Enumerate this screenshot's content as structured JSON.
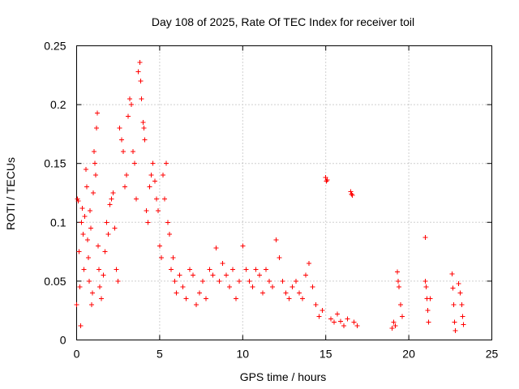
{
  "chart_data": {
    "type": "scatter",
    "title": "Day 108 of 2025, Rate Of TEC Index for receiver toil",
    "xlabel": "GPS time / hours",
    "ylabel": "ROTI / TECUs",
    "xlim": [
      0,
      25
    ],
    "ylim": [
      0,
      0.25
    ],
    "grid": true,
    "marker": "plus",
    "color": "#ff0000",
    "x_ticks": [
      {
        "value": 0,
        "label": "0"
      },
      {
        "value": 5,
        "label": "5"
      },
      {
        "value": 10,
        "label": "10"
      },
      {
        "value": 15,
        "label": "15"
      },
      {
        "value": 20,
        "label": "20"
      },
      {
        "value": 25,
        "label": "25"
      }
    ],
    "y_ticks": [
      {
        "value": 0,
        "label": "0"
      },
      {
        "value": 0.05,
        "label": "0.05"
      },
      {
        "value": 0.1,
        "label": "0.1"
      },
      {
        "value": 0.15,
        "label": "0.15"
      },
      {
        "value": 0.2,
        "label": "0.2"
      },
      {
        "value": 0.25,
        "label": "0.25"
      }
    ],
    "series": [
      {
        "name": "ROTI",
        "points": [
          [
            0.0,
            0.03
          ],
          [
            0.05,
            0.12
          ],
          [
            0.1,
            0.118
          ],
          [
            0.15,
            0.075
          ],
          [
            0.2,
            0.045
          ],
          [
            0.25,
            0.012
          ],
          [
            0.3,
            0.1
          ],
          [
            0.35,
            0.112
          ],
          [
            0.4,
            0.09
          ],
          [
            0.45,
            0.06
          ],
          [
            0.5,
            0.105
          ],
          [
            0.55,
            0.145
          ],
          [
            0.6,
            0.13
          ],
          [
            0.65,
            0.085
          ],
          [
            0.7,
            0.07
          ],
          [
            0.75,
            0.05
          ],
          [
            0.8,
            0.11
          ],
          [
            0.85,
            0.095
          ],
          [
            0.9,
            0.03
          ],
          [
            0.95,
            0.04
          ],
          [
            1.0,
            0.125
          ],
          [
            1.05,
            0.16
          ],
          [
            1.1,
            0.15
          ],
          [
            1.15,
            0.14
          ],
          [
            1.2,
            0.18
          ],
          [
            1.25,
            0.193
          ],
          [
            1.3,
            0.08
          ],
          [
            1.35,
            0.06
          ],
          [
            1.4,
            0.045
          ],
          [
            1.5,
            0.035
          ],
          [
            1.6,
            0.055
          ],
          [
            1.7,
            0.075
          ],
          [
            1.8,
            0.1
          ],
          [
            1.9,
            0.09
          ],
          [
            2.0,
            0.115
          ],
          [
            2.1,
            0.12
          ],
          [
            2.2,
            0.125
          ],
          [
            2.3,
            0.095
          ],
          [
            2.4,
            0.06
          ],
          [
            2.5,
            0.05
          ],
          [
            2.6,
            0.18
          ],
          [
            2.7,
            0.17
          ],
          [
            2.8,
            0.16
          ],
          [
            2.9,
            0.13
          ],
          [
            3.0,
            0.14
          ],
          [
            3.1,
            0.19
          ],
          [
            3.2,
            0.205
          ],
          [
            3.3,
            0.2
          ],
          [
            3.4,
            0.16
          ],
          [
            3.5,
            0.15
          ],
          [
            3.6,
            0.12
          ],
          [
            3.7,
            0.228
          ],
          [
            3.8,
            0.236
          ],
          [
            3.85,
            0.22
          ],
          [
            3.9,
            0.205
          ],
          [
            4.0,
            0.185
          ],
          [
            4.05,
            0.18
          ],
          [
            4.1,
            0.17
          ],
          [
            4.2,
            0.11
          ],
          [
            4.3,
            0.1
          ],
          [
            4.4,
            0.13
          ],
          [
            4.5,
            0.14
          ],
          [
            4.6,
            0.15
          ],
          [
            4.7,
            0.135
          ],
          [
            4.8,
            0.12
          ],
          [
            4.9,
            0.11
          ],
          [
            5.0,
            0.08
          ],
          [
            5.1,
            0.07
          ],
          [
            5.2,
            0.14
          ],
          [
            5.3,
            0.12
          ],
          [
            5.4,
            0.15
          ],
          [
            5.5,
            0.1
          ],
          [
            5.6,
            0.09
          ],
          [
            5.7,
            0.06
          ],
          [
            5.8,
            0.07
          ],
          [
            5.9,
            0.05
          ],
          [
            6.0,
            0.04
          ],
          [
            6.2,
            0.055
          ],
          [
            6.4,
            0.045
          ],
          [
            6.6,
            0.035
          ],
          [
            6.8,
            0.06
          ],
          [
            7.0,
            0.055
          ],
          [
            7.2,
            0.03
          ],
          [
            7.4,
            0.04
          ],
          [
            7.6,
            0.05
          ],
          [
            7.8,
            0.035
          ],
          [
            8.0,
            0.06
          ],
          [
            8.2,
            0.055
          ],
          [
            8.4,
            0.078
          ],
          [
            8.6,
            0.05
          ],
          [
            8.8,
            0.065
          ],
          [
            9.0,
            0.055
          ],
          [
            9.2,
            0.045
          ],
          [
            9.4,
            0.06
          ],
          [
            9.6,
            0.035
          ],
          [
            9.8,
            0.05
          ],
          [
            10.0,
            0.08
          ],
          [
            10.2,
            0.06
          ],
          [
            10.4,
            0.05
          ],
          [
            10.6,
            0.045
          ],
          [
            10.8,
            0.06
          ],
          [
            11.0,
            0.055
          ],
          [
            11.2,
            0.04
          ],
          [
            11.4,
            0.06
          ],
          [
            11.6,
            0.05
          ],
          [
            11.8,
            0.045
          ],
          [
            12.0,
            0.085
          ],
          [
            12.2,
            0.07
          ],
          [
            12.4,
            0.05
          ],
          [
            12.6,
            0.04
          ],
          [
            12.8,
            0.035
          ],
          [
            13.0,
            0.045
          ],
          [
            13.2,
            0.05
          ],
          [
            13.4,
            0.04
          ],
          [
            13.6,
            0.035
          ],
          [
            13.8,
            0.055
          ],
          [
            14.0,
            0.065
          ],
          [
            14.2,
            0.045
          ],
          [
            14.4,
            0.03
          ],
          [
            14.6,
            0.02
          ],
          [
            14.8,
            0.025
          ],
          [
            15.0,
            0.138
          ],
          [
            15.05,
            0.135
          ],
          [
            15.1,
            0.136
          ],
          [
            15.3,
            0.018
          ],
          [
            15.5,
            0.015
          ],
          [
            15.7,
            0.022
          ],
          [
            15.9,
            0.016
          ],
          [
            16.1,
            0.012
          ],
          [
            16.3,
            0.018
          ],
          [
            16.5,
            0.126
          ],
          [
            16.55,
            0.124
          ],
          [
            16.6,
            0.123
          ],
          [
            16.7,
            0.015
          ],
          [
            16.9,
            0.012
          ],
          [
            19.0,
            0.01
          ],
          [
            19.1,
            0.015
          ],
          [
            19.2,
            0.012
          ],
          [
            19.3,
            0.058
          ],
          [
            19.35,
            0.05
          ],
          [
            19.4,
            0.045
          ],
          [
            19.5,
            0.03
          ],
          [
            19.6,
            0.02
          ],
          [
            21.0,
            0.087
          ],
          [
            21.0,
            0.05
          ],
          [
            21.05,
            0.045
          ],
          [
            21.1,
            0.035
          ],
          [
            21.15,
            0.025
          ],
          [
            21.2,
            0.015
          ],
          [
            21.3,
            0.035
          ],
          [
            22.6,
            0.056
          ],
          [
            22.65,
            0.044
          ],
          [
            22.7,
            0.03
          ],
          [
            22.75,
            0.015
          ],
          [
            22.8,
            0.008
          ],
          [
            23.0,
            0.048
          ],
          [
            23.1,
            0.04
          ],
          [
            23.2,
            0.03
          ],
          [
            23.25,
            0.02
          ],
          [
            23.3,
            0.013
          ]
        ]
      }
    ]
  }
}
